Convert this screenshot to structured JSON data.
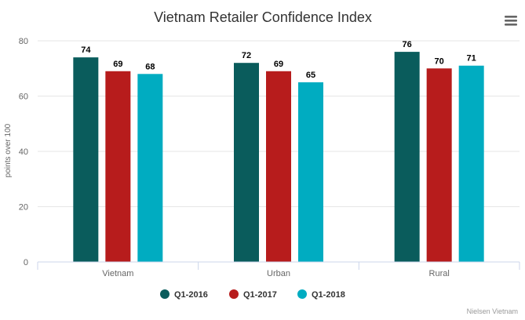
{
  "menu": {
    "icon": "hamburger-menu-icon"
  },
  "credit": "Nielsen Vietnam",
  "chart_data": {
    "type": "bar",
    "title": "Vietnam Retailer Confidence Index",
    "xlabel": "",
    "ylabel": "points over 100",
    "ylim": [
      0,
      80
    ],
    "yticks": [
      "0",
      "20",
      "40",
      "60",
      "80"
    ],
    "categories": [
      "Vietnam",
      "Urban",
      "Rural"
    ],
    "grid": true,
    "legend_position": "bottom",
    "series": [
      {
        "name": "Q1-2016",
        "color": "#0a5c5c",
        "values": [
          74,
          72,
          76
        ]
      },
      {
        "name": "Q1-2017",
        "color": "#b71c1c",
        "values": [
          69,
          69,
          70
        ]
      },
      {
        "name": "Q1-2018",
        "color": "#00acc1",
        "values": [
          68,
          65,
          71
        ]
      }
    ]
  }
}
